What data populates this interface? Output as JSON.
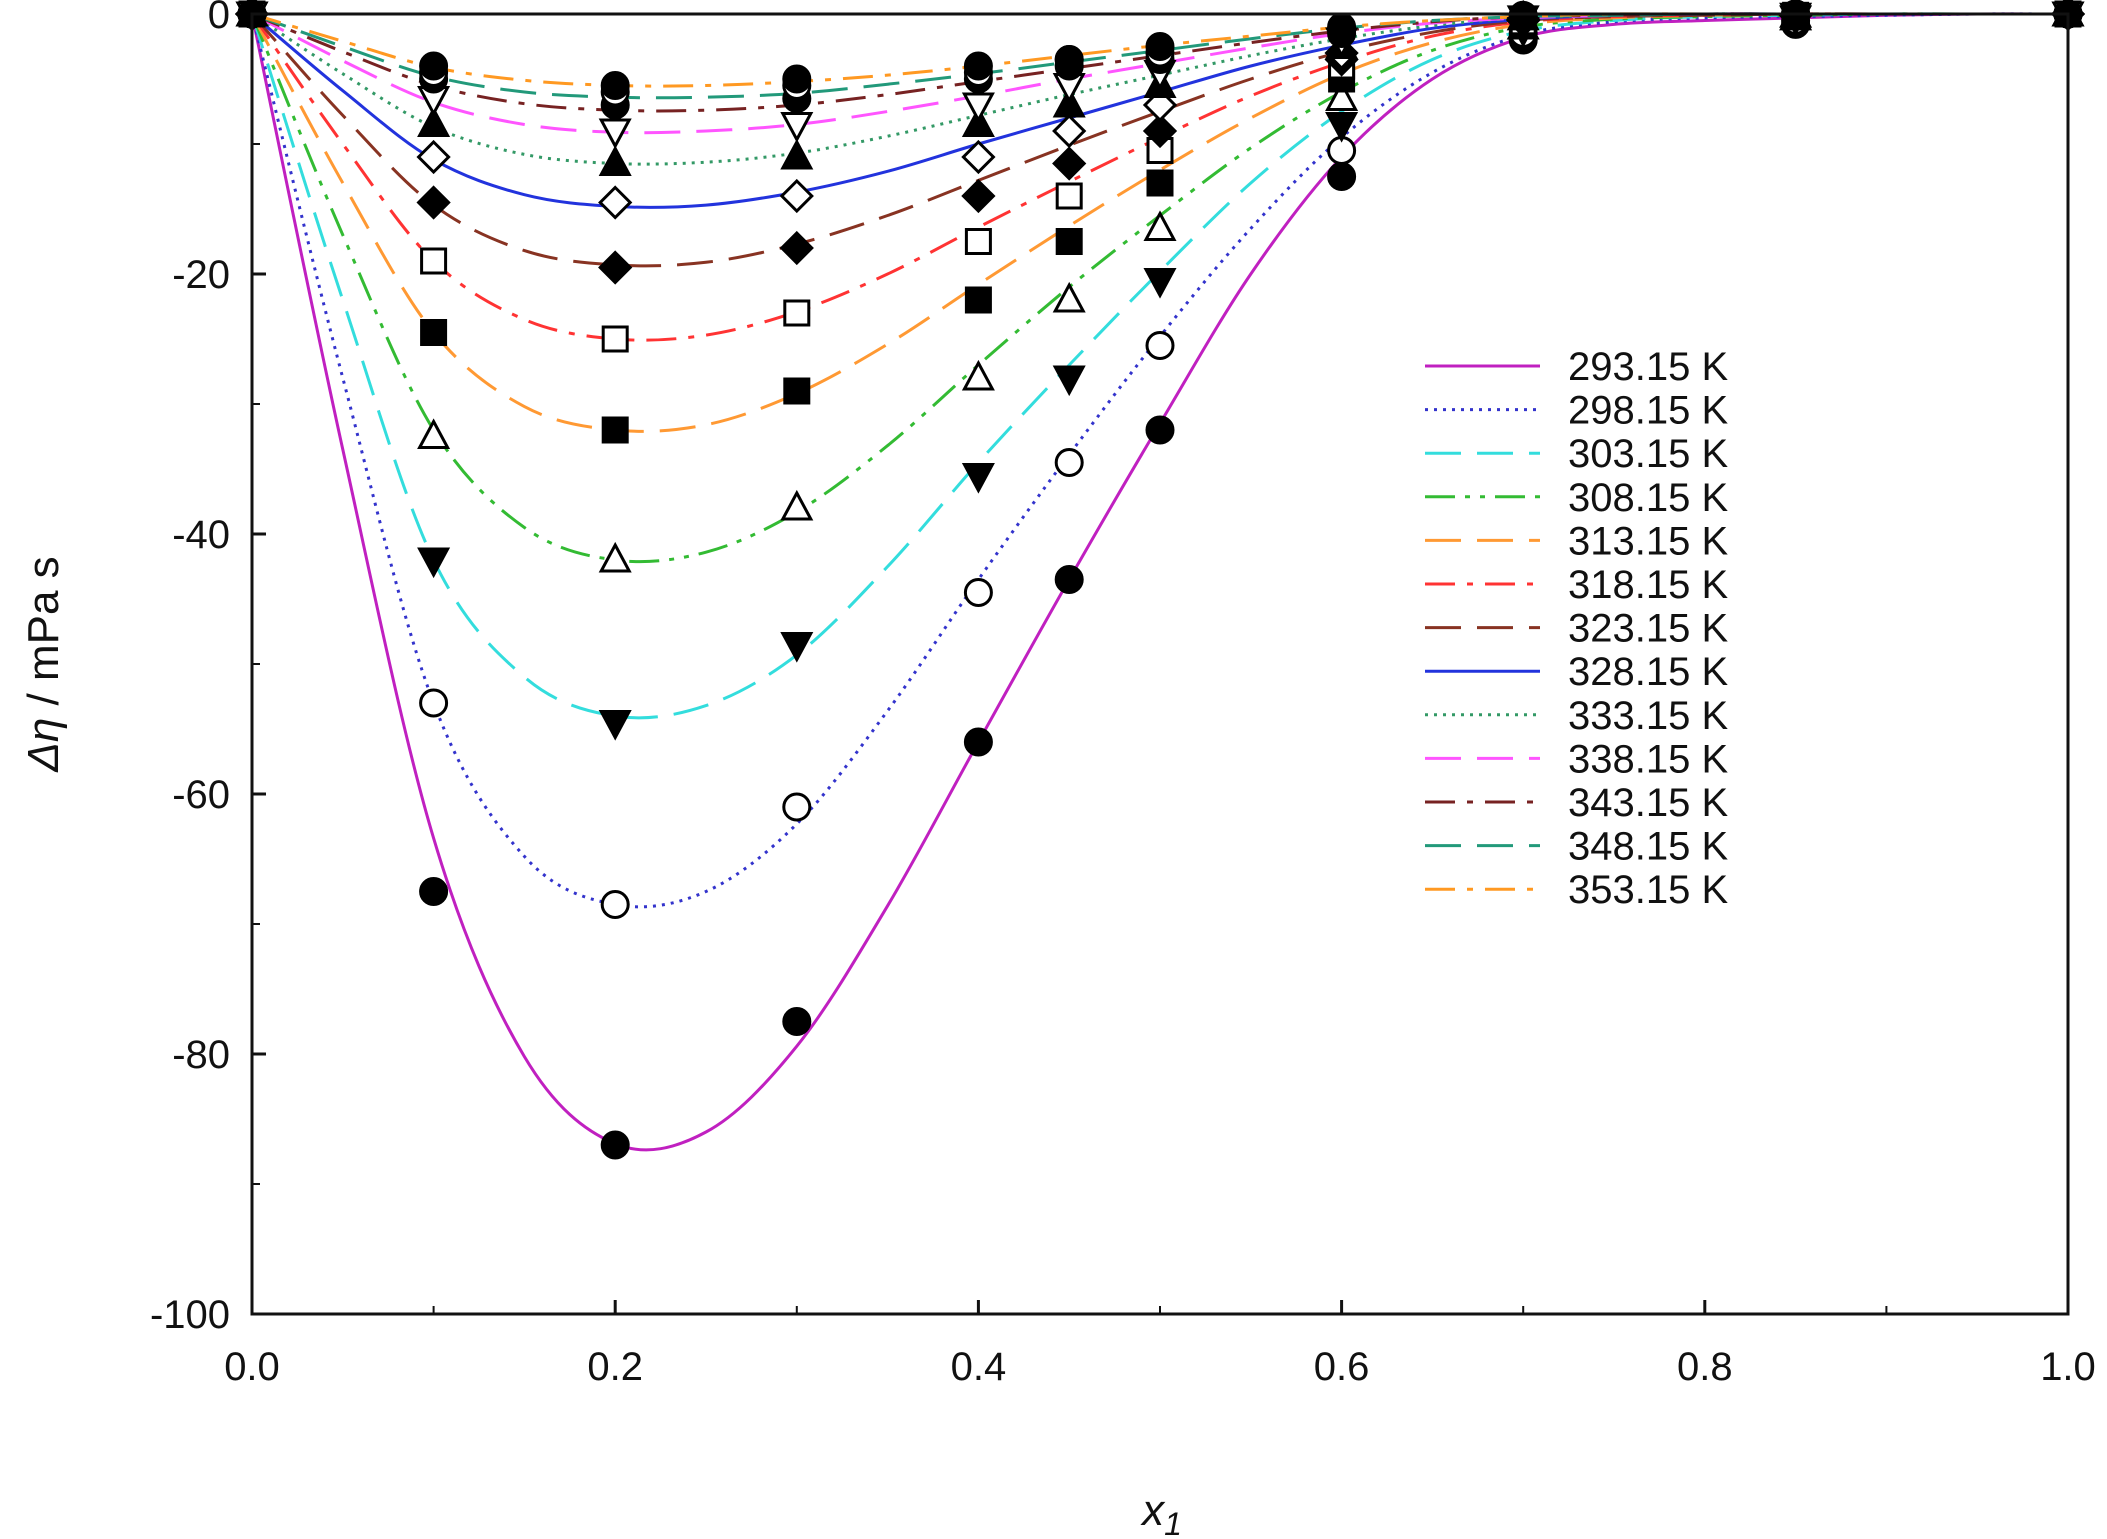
{
  "chart_data": {
    "type": "scatter",
    "title": "",
    "xlabel": "x",
    "xlabel_subscript": "1",
    "ylabel_symbol": "Δη",
    "ylabel_unit": " / mPa s",
    "xlim": [
      0.0,
      1.0
    ],
    "ylim": [
      -100,
      0
    ],
    "xticks": [
      0.0,
      0.2,
      0.4,
      0.6,
      0.8,
      1.0
    ],
    "xtick_labels": [
      "0.0",
      "0.2",
      "0.4",
      "0.6",
      "0.8",
      "1.0"
    ],
    "yticks": [
      0,
      -20,
      -40,
      -60,
      -80,
      -100
    ],
    "ytick_labels": [
      "0",
      "-20",
      "-40",
      "-60",
      "-80",
      "-100"
    ],
    "grid": false,
    "legend_position": "right",
    "x": [
      0.0,
      0.1,
      0.2,
      0.3,
      0.4,
      0.45,
      0.5,
      0.6,
      0.7,
      0.85,
      1.0
    ],
    "series": [
      {
        "name": "293.15 K",
        "color": "#c020c0",
        "dash": "solid",
        "marker": "filled-circle",
        "values": [
          0,
          -67.5,
          -87,
          -77.5,
          -56,
          -43.5,
          -32,
          -12.5,
          -2,
          -0.8,
          0
        ],
        "fit": [
          0,
          -33.5,
          -63.4,
          -80.2,
          -86.9,
          -86.0,
          -79.4,
          -68.6,
          -56.0,
          -43.5,
          -31.5,
          -20.0,
          -11.0,
          -5.0,
          -1.8,
          -0.8,
          -0.5,
          -0.3,
          -0.1,
          0,
          0
        ]
      },
      {
        "name": "298.15 K",
        "color": "#3333cc",
        "dash": "dotted",
        "marker": "open-circle",
        "values": [
          0,
          -53,
          -68.5,
          -61,
          -44.5,
          -34.5,
          -25.5,
          -10.5,
          -1.5,
          -0.5,
          0
        ],
        "fit": [
          0,
          -28,
          -53,
          -64.8,
          -68.5,
          -67.5,
          -62.3,
          -53.6,
          -43.5,
          -33.9,
          -24.8,
          -16.5,
          -9.5,
          -4.5,
          -1.6,
          -0.6,
          -0.3,
          -0.2,
          -0.1,
          0,
          0
        ]
      },
      {
        "name": "303.15 K",
        "color": "#33dddd",
        "dash": "long-dash",
        "marker": "filled-triangle-down",
        "values": [
          0,
          -42,
          -54.5,
          -48.5,
          -35.5,
          -28,
          -20.5,
          -8.5,
          -1.2,
          -0.3,
          0
        ],
        "fit": [
          0,
          -22,
          -42,
          -51,
          -54,
          -53.2,
          -49.3,
          -42.5,
          -34.5,
          -27,
          -19.8,
          -13,
          -7.5,
          -3.5,
          -1.3,
          -0.5,
          -0.2,
          -0.1,
          0,
          0,
          0
        ]
      },
      {
        "name": "308.15 K",
        "color": "#33bb33",
        "dash": "dash-dot-dot",
        "marker": "open-triangle-up",
        "values": [
          0,
          -32.5,
          -42,
          -38,
          -28,
          -22,
          -16.5,
          -6.5,
          -1,
          -0.3,
          0
        ],
        "fit": [
          0,
          -17,
          -32,
          -39.5,
          -42,
          -41.4,
          -38.3,
          -33.2,
          -27,
          -21,
          -15.5,
          -10.3,
          -6,
          -2.8,
          -1,
          -0.4,
          -0.2,
          -0.1,
          0,
          0,
          0
        ]
      },
      {
        "name": "313.15 K",
        "color": "#ff9933",
        "dash": "long-dash",
        "marker": "filled-square",
        "values": [
          0,
          -24.5,
          -32,
          -29,
          -22,
          -17.5,
          -13,
          -5,
          -0.8,
          -0.2,
          0
        ],
        "fit": [
          0,
          -13,
          -24.5,
          -30.2,
          -32,
          -31.6,
          -29.2,
          -25.4,
          -20.8,
          -16.3,
          -12,
          -8,
          -4.6,
          -2.2,
          -0.8,
          -0.3,
          -0.1,
          0,
          0,
          0,
          0
        ]
      },
      {
        "name": "318.15 K",
        "color": "#ff3333",
        "dash": "dash-dot",
        "marker": "open-square",
        "values": [
          0,
          -19,
          -25,
          -23,
          -17.5,
          -14,
          -10.5,
          -4,
          -0.6,
          -0.1,
          0
        ],
        "fit": [
          0,
          -10,
          -19,
          -23.5,
          -25,
          -24.7,
          -22.9,
          -20,
          -16.4,
          -12.9,
          -9.5,
          -6.3,
          -3.7,
          -1.7,
          -0.6,
          -0.2,
          -0.1,
          0,
          0,
          0,
          0
        ]
      },
      {
        "name": "323.15 K",
        "color": "#883322",
        "dash": "long-dash",
        "marker": "filled-diamond",
        "values": [
          0,
          -14.5,
          -19.5,
          -18,
          -14,
          -11.5,
          -9,
          -3.5,
          -0.5,
          -0.1,
          0
        ],
        "fit": [
          0,
          -7.8,
          -14.7,
          -18.2,
          -19.3,
          -19.1,
          -17.7,
          -15.5,
          -12.8,
          -10.1,
          -7.5,
          -5,
          -2.9,
          -1.4,
          -0.5,
          -0.2,
          -0.1,
          0,
          0,
          0,
          0
        ]
      },
      {
        "name": "328.15 K",
        "color": "#2233dd",
        "dash": "solid",
        "marker": "open-diamond",
        "values": [
          0,
          -11,
          -14.5,
          -14,
          -11,
          -9,
          -7,
          -3,
          -0.4,
          -0.1,
          0
        ],
        "fit": [
          0,
          -5.9,
          -11.2,
          -13.9,
          -14.8,
          -14.7,
          -13.7,
          -12.1,
          -10,
          -8,
          -6,
          -4,
          -2.4,
          -1.1,
          -0.4,
          -0.1,
          0,
          0,
          0,
          0,
          0
        ]
      },
      {
        "name": "333.15 K",
        "color": "#339966",
        "dash": "dotted",
        "marker": "filled-triangle-up",
        "values": [
          0,
          -8.5,
          -11.5,
          -11,
          -8.5,
          -7,
          -5.5,
          -2.5,
          -0.3,
          -0.1,
          0
        ],
        "fit": [
          0,
          -4.6,
          -8.7,
          -10.8,
          -11.5,
          -11.4,
          -10.7,
          -9.4,
          -7.8,
          -6.2,
          -4.7,
          -3.2,
          -1.9,
          -0.9,
          -0.3,
          -0.1,
          0,
          0,
          0,
          0,
          0
        ]
      },
      {
        "name": "338.15 K",
        "color": "#ff55ff",
        "dash": "long-dash",
        "marker": "open-triangle-down",
        "values": [
          0,
          -6.5,
          -9,
          -8.5,
          -7,
          -5.5,
          -4.5,
          -2,
          -0.3,
          -0.1,
          0
        ],
        "fit": [
          0,
          -3.6,
          -6.8,
          -8.5,
          -9.1,
          -9,
          -8.5,
          -7.5,
          -6.3,
          -5,
          -3.8,
          -2.6,
          -1.5,
          -0.7,
          -0.3,
          -0.1,
          0,
          0,
          0,
          0,
          0
        ]
      },
      {
        "name": "343.15 K",
        "color": "#772222",
        "dash": "dash-dot",
        "marker": "filled-circle",
        "values": [
          0,
          -5,
          -7,
          -6.5,
          -5,
          -4,
          -3.5,
          -1.5,
          -0.2,
          0,
          0
        ],
        "fit": [
          0,
          -2.9,
          -5.5,
          -6.9,
          -7.4,
          -7.4,
          -7,
          -6.2,
          -5.2,
          -4.2,
          -3.2,
          -2.2,
          -1.3,
          -0.6,
          -0.2,
          -0.1,
          0,
          0,
          0,
          0,
          0
        ]
      },
      {
        "name": "348.15 K",
        "color": "#22997a",
        "dash": "long-dash",
        "marker": "open-circle",
        "values": [
          0,
          -4.5,
          -6,
          -5.5,
          -4.5,
          -3.5,
          -3,
          -1.2,
          -0.2,
          0,
          0
        ],
        "fit": [
          0,
          -2.5,
          -4.8,
          -6,
          -6.4,
          -6.4,
          -6.1,
          -5.4,
          -4.6,
          -3.7,
          -2.8,
          -1.9,
          -1.1,
          -0.5,
          -0.2,
          -0.1,
          0,
          0,
          0,
          0,
          0
        ]
      },
      {
        "name": "353.15 K",
        "color": "#ff9922",
        "dash": "dash-dot",
        "marker": "filled-circle",
        "values": [
          0,
          -4,
          -5.5,
          -5,
          -4,
          -3.5,
          -2.5,
          -1,
          -0.1,
          0,
          0
        ],
        "fit": [
          0,
          -2.1,
          -4.1,
          -5.1,
          -5.5,
          -5.5,
          -5.2,
          -4.7,
          -4,
          -3.2,
          -2.4,
          -1.7,
          -1,
          -0.5,
          -0.2,
          0,
          0,
          0,
          0,
          0,
          0
        ]
      }
    ],
    "fit_x": [
      0,
      0.05,
      0.1,
      0.15,
      0.2,
      0.25,
      0.3,
      0.35,
      0.4,
      0.45,
      0.5,
      0.55,
      0.6,
      0.65,
      0.7,
      0.75,
      0.8,
      0.85,
      0.9,
      0.95,
      1.0
    ]
  }
}
